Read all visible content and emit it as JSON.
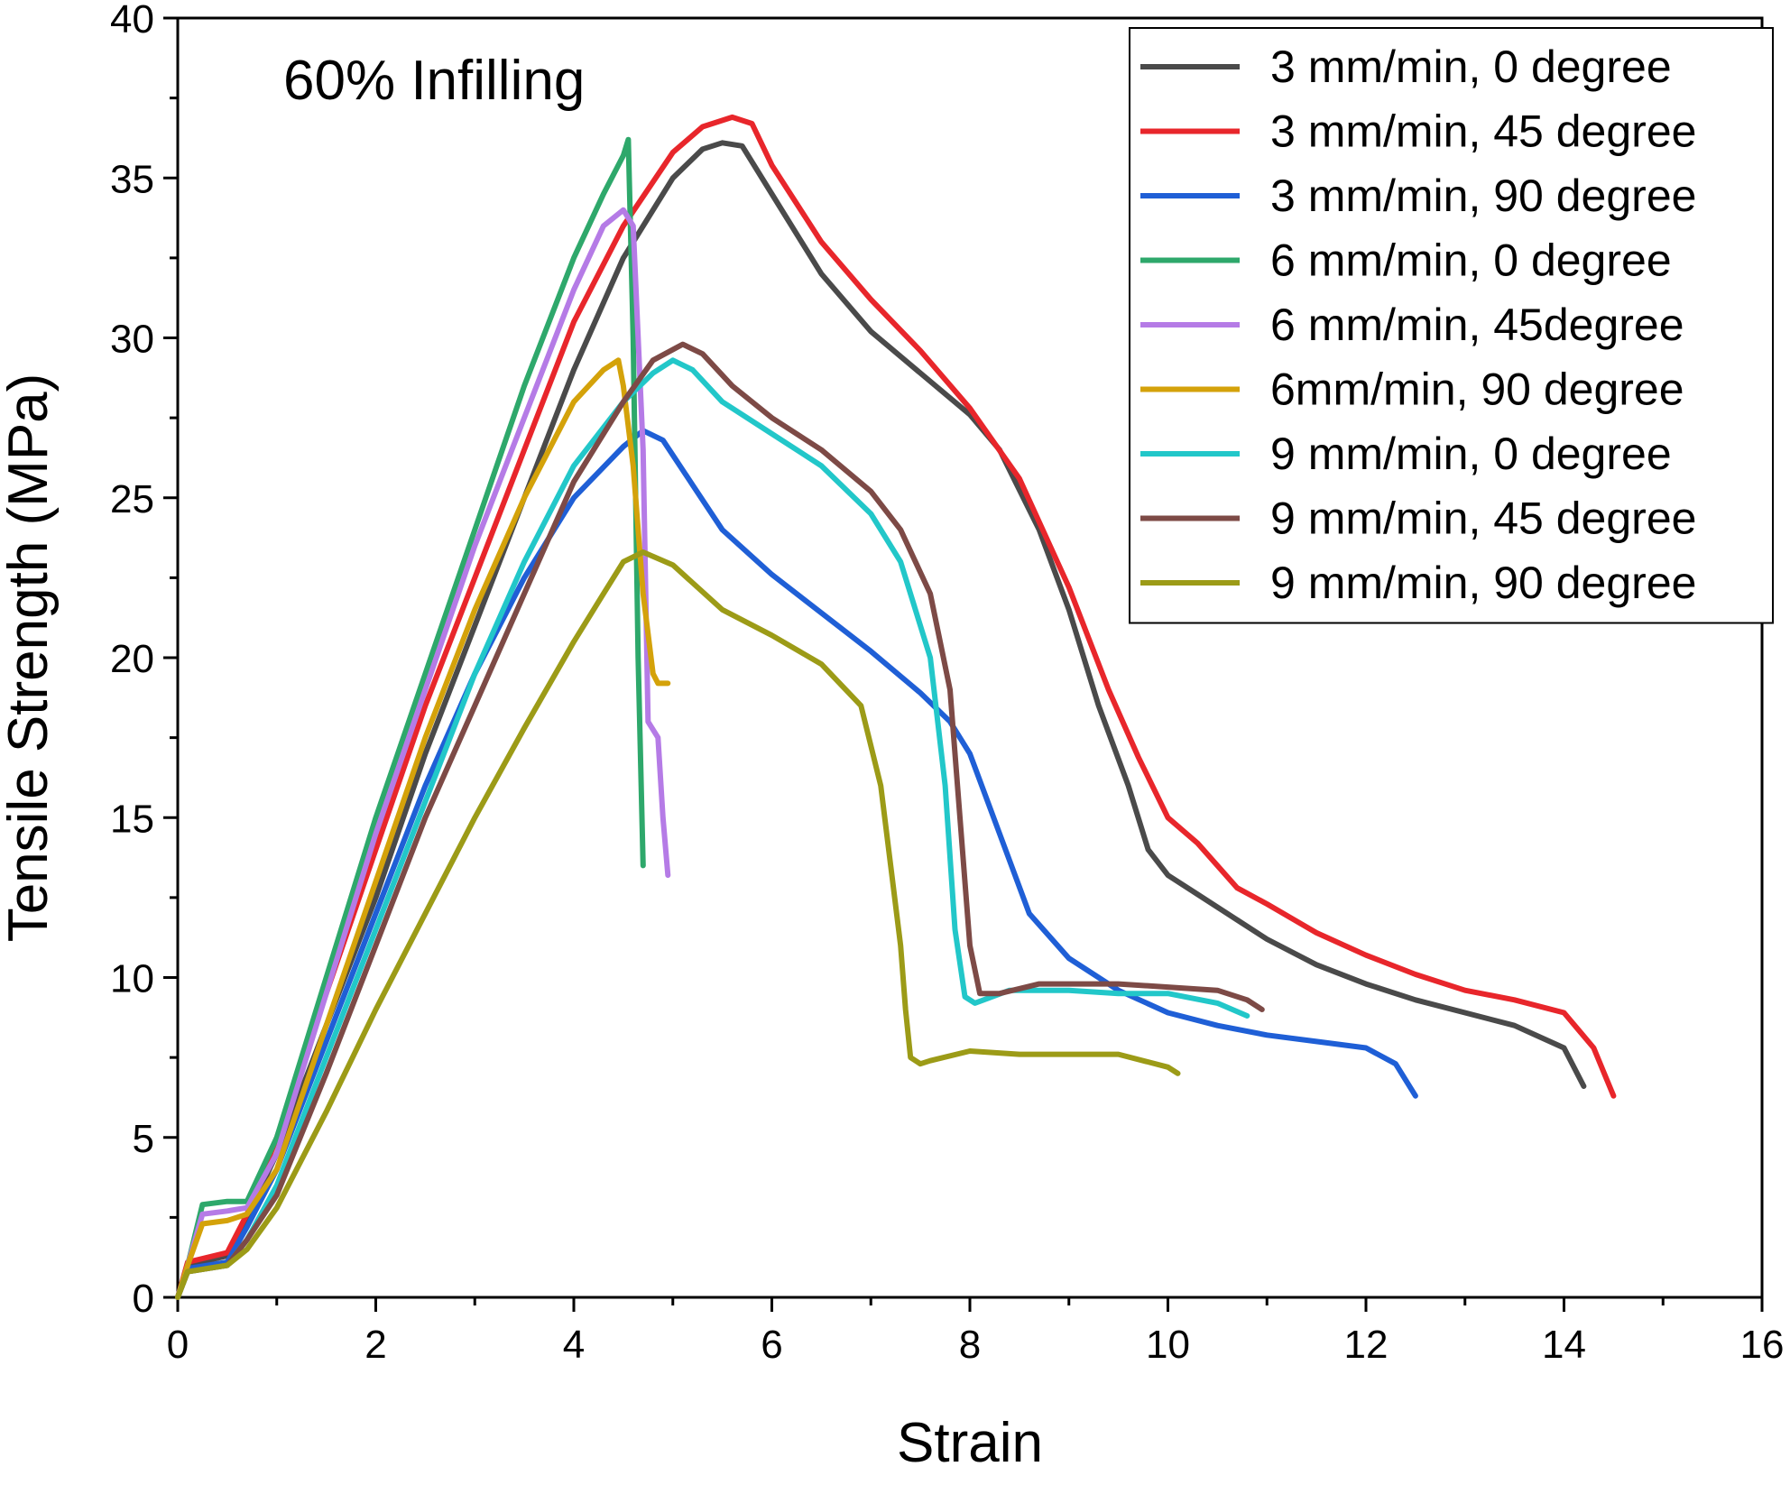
{
  "chart_data": {
    "type": "line",
    "annotation": "60% Infilling",
    "xlabel": "Strain",
    "ylabel": "Tensile Strength (MPa)",
    "xlim": [
      0,
      16
    ],
    "ylim": [
      0,
      40
    ],
    "x_ticks": [
      0,
      2,
      4,
      6,
      8,
      10,
      12,
      14,
      16
    ],
    "y_ticks": [
      0,
      5,
      10,
      15,
      20,
      25,
      30,
      35,
      40
    ],
    "x_tick_labels": [
      "0",
      "2",
      "4",
      "6",
      "8",
      "10",
      "12",
      "14",
      "16"
    ],
    "y_tick_labels": [
      "0",
      "5",
      "10",
      "15",
      "20",
      "25",
      "30",
      "35",
      "40"
    ],
    "grid": false,
    "legend_position": "top-right",
    "series": [
      {
        "name": "3 mm/min, 0 degree",
        "color": "#4a4a4a",
        "x": [
          0,
          0.1,
          0.5,
          0.7,
          1.0,
          1.5,
          2.0,
          2.5,
          3.0,
          3.5,
          4.0,
          4.5,
          5.0,
          5.3,
          5.5,
          5.7,
          6.0,
          6.5,
          7.0,
          7.5,
          8.0,
          8.3,
          8.7,
          9.0,
          9.3,
          9.6,
          9.8,
          10.0,
          10.3,
          10.7,
          11.0,
          11.5,
          12.0,
          12.5,
          13.0,
          13.5,
          14.0,
          14.2
        ],
        "y": [
          0,
          1.0,
          1.3,
          2.5,
          4.5,
          8.5,
          12.5,
          17.0,
          21.0,
          25.0,
          29.0,
          32.5,
          35.0,
          35.9,
          36.1,
          36.0,
          34.5,
          32.0,
          30.2,
          28.9,
          27.6,
          26.5,
          24.0,
          21.5,
          18.5,
          16.0,
          14.0,
          13.2,
          12.6,
          11.8,
          11.2,
          10.4,
          9.8,
          9.3,
          8.9,
          8.5,
          7.8,
          6.6
        ]
      },
      {
        "name": "3 mm/min, 45 degree",
        "color": "#e8262b",
        "x": [
          0,
          0.1,
          0.5,
          0.7,
          1.0,
          1.5,
          2.0,
          2.5,
          3.0,
          3.5,
          4.0,
          4.5,
          5.0,
          5.3,
          5.6,
          5.8,
          6.0,
          6.5,
          7.0,
          7.5,
          8.0,
          8.5,
          9.0,
          9.4,
          9.7,
          10.0,
          10.3,
          10.7,
          11.0,
          11.5,
          12.0,
          12.5,
          13.0,
          13.5,
          14.0,
          14.3,
          14.5
        ],
        "y": [
          0,
          1.1,
          1.4,
          2.6,
          5.0,
          9.5,
          14.0,
          18.5,
          22.5,
          26.5,
          30.5,
          33.5,
          35.8,
          36.6,
          36.9,
          36.7,
          35.4,
          33.0,
          31.2,
          29.6,
          27.8,
          25.6,
          22.2,
          19.0,
          16.9,
          15.0,
          14.2,
          12.8,
          12.3,
          11.4,
          10.7,
          10.1,
          9.6,
          9.3,
          8.9,
          7.8,
          6.3
        ]
      },
      {
        "name": "3 mm/min, 90 degree",
        "color": "#1f5fd6",
        "x": [
          0,
          0.1,
          0.5,
          0.7,
          1.0,
          1.5,
          2.0,
          2.5,
          3.0,
          3.5,
          4.0,
          4.5,
          4.7,
          4.9,
          5.2,
          5.5,
          6.0,
          6.5,
          7.0,
          7.5,
          7.8,
          8.0,
          8.3,
          8.6,
          9.0,
          9.5,
          10.0,
          10.5,
          11.0,
          11.5,
          12.0,
          12.3,
          12.5
        ],
        "y": [
          0,
          0.9,
          1.1,
          2.2,
          4.0,
          8.0,
          12.0,
          16.0,
          19.5,
          22.5,
          25.0,
          26.6,
          27.1,
          26.8,
          25.4,
          24.0,
          22.6,
          21.4,
          20.2,
          18.9,
          18.0,
          17.0,
          14.5,
          12.0,
          10.6,
          9.6,
          8.9,
          8.5,
          8.2,
          8.0,
          7.8,
          7.3,
          6.3
        ]
      },
      {
        "name": "6 mm/min, 0 degree",
        "color": "#2ea86b",
        "x": [
          0,
          0.1,
          0.25,
          0.5,
          0.7,
          1.0,
          1.5,
          2.0,
          2.5,
          3.0,
          3.5,
          4.0,
          4.3,
          4.5,
          4.55,
          4.6,
          4.65,
          4.7
        ],
        "y": [
          0,
          1.0,
          2.9,
          3.0,
          3.0,
          5.0,
          10.0,
          15.0,
          19.5,
          24.0,
          28.5,
          32.5,
          34.5,
          35.7,
          36.2,
          30.0,
          20.0,
          13.5
        ]
      },
      {
        "name": "6 mm/min, 45degree",
        "color": "#b57be6",
        "x": [
          0,
          0.1,
          0.25,
          0.5,
          0.7,
          1.0,
          1.5,
          2.0,
          2.5,
          3.0,
          3.5,
          4.0,
          4.3,
          4.5,
          4.6,
          4.65,
          4.7,
          4.75,
          4.85,
          4.9,
          4.95
        ],
        "y": [
          0,
          1.0,
          2.6,
          2.7,
          2.8,
          4.5,
          9.5,
          14.5,
          19.0,
          23.5,
          27.5,
          31.5,
          33.5,
          34.0,
          33.5,
          30.0,
          26.5,
          18.0,
          17.5,
          15.0,
          13.2
        ]
      },
      {
        "name": "6mm/min, 90 degree",
        "color": "#d4a20a",
        "x": [
          0,
          0.1,
          0.25,
          0.5,
          0.7,
          1.0,
          1.5,
          2.0,
          2.5,
          3.0,
          3.5,
          4.0,
          4.3,
          4.45,
          4.5,
          4.6,
          4.7,
          4.8,
          4.85,
          4.95
        ],
        "y": [
          0,
          1.0,
          2.3,
          2.4,
          2.6,
          4.0,
          8.5,
          13.0,
          17.5,
          21.5,
          25.0,
          28.0,
          29.0,
          29.3,
          28.5,
          26.0,
          22.0,
          19.5,
          19.2,
          19.2
        ]
      },
      {
        "name": "9 mm/min, 0 degree",
        "color": "#22c7c9",
        "x": [
          0,
          0.1,
          0.5,
          0.7,
          1.0,
          1.5,
          2.0,
          2.5,
          3.0,
          3.5,
          4.0,
          4.5,
          4.8,
          5.0,
          5.2,
          5.5,
          6.0,
          6.5,
          7.0,
          7.3,
          7.6,
          7.75,
          7.85,
          7.95,
          8.05,
          8.4,
          9.0,
          9.5,
          10.0,
          10.5,
          10.8
        ],
        "y": [
          0,
          0.8,
          1.0,
          1.8,
          3.5,
          7.5,
          11.5,
          15.5,
          19.5,
          23.0,
          26.0,
          28.0,
          28.9,
          29.3,
          29.0,
          28.0,
          27.0,
          26.0,
          24.5,
          23.0,
          20.0,
          16.0,
          11.5,
          9.4,
          9.2,
          9.6,
          9.6,
          9.5,
          9.5,
          9.2,
          8.8
        ]
      },
      {
        "name": "9 mm/min, 45 degree",
        "color": "#7d4a46",
        "x": [
          0,
          0.1,
          0.5,
          0.7,
          1.0,
          1.5,
          2.0,
          2.5,
          3.0,
          3.5,
          4.0,
          4.5,
          4.8,
          5.1,
          5.3,
          5.6,
          6.0,
          6.5,
          7.0,
          7.3,
          7.6,
          7.8,
          7.9,
          8.0,
          8.1,
          8.3,
          8.7,
          9.5,
          10.0,
          10.5,
          10.8,
          10.95
        ],
        "y": [
          0,
          0.8,
          1.0,
          1.8,
          3.2,
          7.0,
          11.0,
          15.0,
          18.5,
          22.0,
          25.5,
          28.0,
          29.3,
          29.8,
          29.5,
          28.5,
          27.5,
          26.5,
          25.2,
          24.0,
          22.0,
          19.0,
          15.0,
          11.0,
          9.5,
          9.5,
          9.8,
          9.8,
          9.7,
          9.6,
          9.3,
          9.0
        ]
      },
      {
        "name": "9 mm/min, 90 degree",
        "color": "#9c9b17",
        "x": [
          0,
          0.1,
          0.5,
          0.7,
          1.0,
          1.5,
          2.0,
          2.5,
          3.0,
          3.5,
          4.0,
          4.3,
          4.5,
          4.7,
          5.0,
          5.5,
          6.0,
          6.5,
          6.9,
          7.1,
          7.2,
          7.3,
          7.35,
          7.4,
          7.5,
          7.6,
          8.0,
          8.5,
          9.0,
          9.5,
          10.0,
          10.1
        ],
        "y": [
          0,
          0.8,
          1.0,
          1.5,
          2.8,
          5.8,
          9.0,
          12.0,
          15.0,
          17.8,
          20.5,
          22.0,
          23.0,
          23.3,
          22.9,
          21.5,
          20.7,
          19.8,
          18.5,
          16.0,
          13.5,
          11.0,
          9.0,
          7.5,
          7.3,
          7.4,
          7.7,
          7.6,
          7.6,
          7.6,
          7.2,
          7.0
        ]
      }
    ]
  }
}
